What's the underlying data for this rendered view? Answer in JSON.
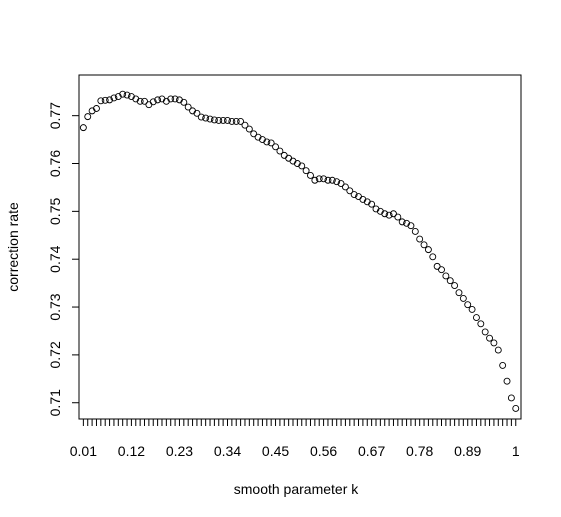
{
  "chart_data": {
    "type": "scatter",
    "xlabel": "smooth parameter k",
    "ylabel": "correction rate",
    "marker": "open-circle",
    "x_tick_labels": [
      "0.01",
      "0.12",
      "0.23",
      "0.34",
      "0.45",
      "0.56",
      "0.67",
      "0.78",
      "0.89",
      "1"
    ],
    "y_ticks": [
      0.71,
      0.72,
      0.73,
      0.74,
      0.75,
      0.76,
      0.77
    ],
    "xlim": [
      0.0,
      1.012
    ],
    "ylim": [
      0.7066,
      0.7785
    ],
    "grid": false,
    "legend": "none",
    "x": [
      0.01,
      0.02,
      0.03,
      0.04,
      0.05,
      0.06,
      0.07,
      0.08,
      0.09,
      0.1,
      0.11,
      0.12,
      0.13,
      0.14,
      0.15,
      0.16,
      0.17,
      0.18,
      0.19,
      0.2,
      0.21,
      0.22,
      0.23,
      0.24,
      0.25,
      0.26,
      0.27,
      0.28,
      0.29,
      0.3,
      0.31,
      0.32,
      0.33,
      0.34,
      0.35,
      0.36,
      0.37,
      0.38,
      0.39,
      0.4,
      0.41,
      0.42,
      0.43,
      0.44,
      0.45,
      0.46,
      0.47,
      0.48,
      0.49,
      0.5,
      0.51,
      0.52,
      0.53,
      0.54,
      0.55,
      0.56,
      0.57,
      0.58,
      0.59,
      0.6,
      0.61,
      0.62,
      0.63,
      0.64,
      0.65,
      0.66,
      0.67,
      0.68,
      0.69,
      0.7,
      0.71,
      0.72,
      0.73,
      0.74,
      0.75,
      0.76,
      0.77,
      0.78,
      0.79,
      0.8,
      0.81,
      0.82,
      0.83,
      0.84,
      0.85,
      0.86,
      0.87,
      0.88,
      0.89,
      0.9,
      0.91,
      0.92,
      0.93,
      0.94,
      0.95,
      0.96,
      0.97,
      0.98,
      0.99,
      1.0
    ],
    "y": [
      0.7675,
      0.7698,
      0.771,
      0.7715,
      0.7731,
      0.7732,
      0.7733,
      0.7737,
      0.774,
      0.7745,
      0.7743,
      0.774,
      0.7735,
      0.773,
      0.773,
      0.7723,
      0.7729,
      0.7733,
      0.7735,
      0.773,
      0.7735,
      0.7735,
      0.7733,
      0.7728,
      0.7718,
      0.771,
      0.7705,
      0.7697,
      0.7695,
      0.7693,
      0.7691,
      0.769,
      0.769,
      0.769,
      0.7688,
      0.7688,
      0.7688,
      0.768,
      0.7672,
      0.7662,
      0.7655,
      0.765,
      0.7645,
      0.7643,
      0.7635,
      0.7626,
      0.7617,
      0.7611,
      0.7605,
      0.76,
      0.7595,
      0.7585,
      0.7575,
      0.7565,
      0.7568,
      0.7568,
      0.7565,
      0.7565,
      0.7562,
      0.7558,
      0.7551,
      0.7543,
      0.7535,
      0.7531,
      0.7525,
      0.752,
      0.7515,
      0.7505,
      0.75,
      0.7495,
      0.7492,
      0.7495,
      0.7488,
      0.7478,
      0.7475,
      0.747,
      0.7458,
      0.7442,
      0.743,
      0.742,
      0.7405,
      0.7385,
      0.7378,
      0.7365,
      0.7355,
      0.7345,
      0.733,
      0.7318,
      0.7305,
      0.7295,
      0.7278,
      0.7265,
      0.7248,
      0.7235,
      0.7225,
      0.721,
      0.7178,
      0.7145,
      0.711,
      0.7088
    ]
  }
}
